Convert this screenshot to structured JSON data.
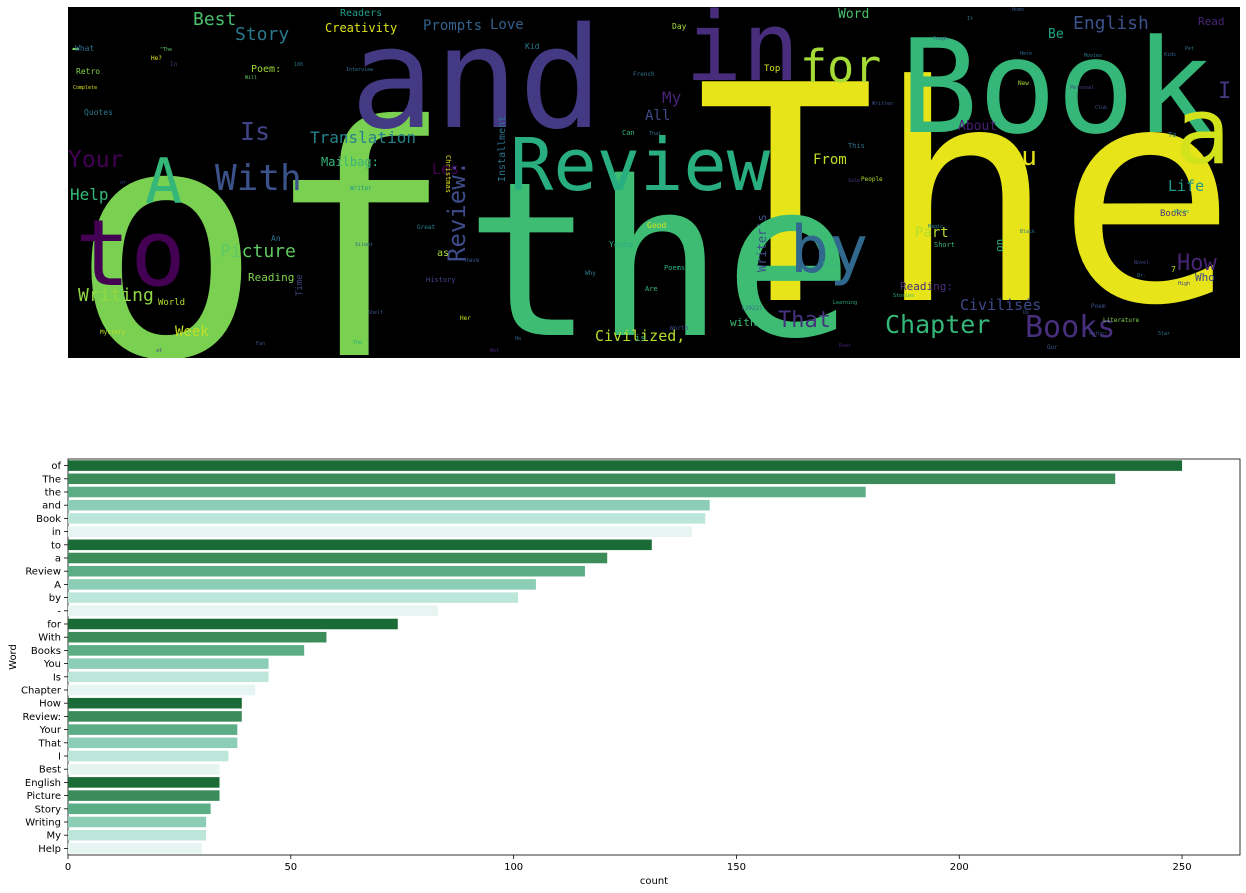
{
  "chart_data": [
    {
      "type": "wordcloud",
      "background": "#000000",
      "palette": "viridis",
      "words": [
        {
          "text": "of",
          "size": 250,
          "color": "#7ad151"
        },
        {
          "text": "The",
          "size": 235,
          "color": "#e7e419"
        },
        {
          "text": "the",
          "size": 179,
          "color": "#3fbc73"
        },
        {
          "text": "and",
          "size": 144,
          "color": "#443983"
        },
        {
          "text": "Book",
          "size": 143,
          "color": "#35b779"
        },
        {
          "text": "in",
          "size": 140,
          "color": "#472d7b"
        },
        {
          "text": "-",
          "size": 83,
          "color": "#7ad151"
        },
        {
          "text": "a",
          "size": 121,
          "color": "#d2e21b"
        },
        {
          "text": "Review",
          "size": 116,
          "color": "#29af7f"
        },
        {
          "text": "A",
          "size": 105,
          "color": "#35b779"
        },
        {
          "text": "to",
          "size": 131,
          "color": "#440154"
        },
        {
          "text": "by",
          "size": 101,
          "color": "#31688e"
        },
        {
          "text": "for",
          "size": 74,
          "color": "#a5db36"
        },
        {
          "text": "With",
          "size": 58,
          "color": "#3b528b"
        },
        {
          "text": "You",
          "size": 45,
          "color": "#e5e419"
        },
        {
          "text": "Books",
          "size": 53,
          "color": "#472f7d"
        },
        {
          "text": "Chapter",
          "size": 42,
          "color": "#35b779"
        },
        {
          "text": "Is",
          "size": 45,
          "color": "#414487"
        },
        {
          "text": "How",
          "size": 39,
          "color": "#482475"
        },
        {
          "text": "Review:",
          "size": 39,
          "color": "#3e4c8a"
        },
        {
          "text": "Your",
          "size": 38,
          "color": "#440154"
        },
        {
          "text": "That",
          "size": 38,
          "color": "#46327e"
        },
        {
          "text": "I",
          "size": 36,
          "color": "#453781"
        },
        {
          "text": "Best",
          "size": 34,
          "color": "#4ac16d"
        },
        {
          "text": "English",
          "size": 34,
          "color": "#3b528b"
        },
        {
          "text": "Picture",
          "size": 34,
          "color": "#5ec962"
        },
        {
          "text": "Story",
          "size": 32,
          "color": "#2a788e"
        },
        {
          "text": "Writing",
          "size": 31,
          "color": "#90d743"
        },
        {
          "text": "My",
          "size": 31,
          "color": "#482475"
        },
        {
          "text": "Help",
          "size": 30,
          "color": "#35b779"
        },
        {
          "text": "Translation",
          "size": 24,
          "color": "#26828e"
        },
        {
          "text": "Life",
          "size": 24,
          "color": "#1f988b"
        },
        {
          "text": "Civilized,",
          "size": 22,
          "color": "#b5de2b"
        },
        {
          "text": "Civilisés",
          "size": 22,
          "color": "#3e4989"
        },
        {
          "text": "Part",
          "size": 20,
          "color": "#b5de2b"
        },
        {
          "text": "From",
          "size": 20,
          "color": "#bddf26"
        },
        {
          "text": "Week",
          "size": 20,
          "color": "#c2df23"
        },
        {
          "text": "Les",
          "size": 20,
          "color": "#440154"
        },
        {
          "text": "All",
          "size": 20,
          "color": "#3e4a89"
        },
        {
          "text": "Love",
          "size": 20,
          "color": "#355f8d"
        },
        {
          "text": "Prompts",
          "size": 20,
          "color": "#33638d"
        },
        {
          "text": "Creativity",
          "size": 19,
          "color": "#dde318"
        },
        {
          "text": "Word",
          "size": 18,
          "color": "#4ac16d"
        },
        {
          "text": "About",
          "size": 18,
          "color": "#482173"
        },
        {
          "text": "Be",
          "size": 18,
          "color": "#21a685"
        },
        {
          "text": "Read",
          "size": 17,
          "color": "#482677"
        },
        {
          "text": "Mailbag:",
          "size": 17,
          "color": "#34b679"
        },
        {
          "text": "Reading:",
          "size": 16,
          "color": "#472c7a"
        },
        {
          "text": "with",
          "size": 14,
          "color": "#3dbc74"
        },
        {
          "text": "Writer's",
          "size": 15,
          "color": "#3b528b"
        },
        {
          "text": "Installment",
          "size": 15,
          "color": "#2c728e"
        },
        {
          "text": "Reading",
          "size": 14,
          "color": "#7fd34e"
        },
        {
          "text": "Readers",
          "size": 14,
          "color": "#1f9e89"
        },
        {
          "text": "Poem:",
          "size": 14,
          "color": "#a0da39"
        },
        {
          "text": "on",
          "size": 14,
          "color": "#27ad81"
        },
        {
          "text": "Who",
          "size": 14,
          "color": "#3f4889"
        },
        {
          "text": "Top",
          "size": 12,
          "color": "#d2e21b"
        },
        {
          "text": "Day",
          "size": 12,
          "color": "#a5db36"
        },
        {
          "text": "Kid",
          "size": 12,
          "color": "#297b8e"
        },
        {
          "text": "Quotes",
          "size": 12,
          "color": "#29798e"
        },
        {
          "text": "Retro",
          "size": 12,
          "color": "#85d54a"
        },
        {
          "text": "What",
          "size": 12,
          "color": "#2e6f8e"
        },
        {
          "text": "as",
          "size": 12,
          "color": "#a8db34"
        },
        {
          "text": "Young",
          "size": 12,
          "color": "#26ad81"
        },
        {
          "text": "Good",
          "size": 12,
          "color": "#d8e219"
        },
        {
          "text": "Are",
          "size": 11,
          "color": "#3aba76"
        },
        {
          "text": "Poems",
          "size": 11,
          "color": "#28ae80"
        },
        {
          "text": "Short",
          "size": 11,
          "color": "#35b779"
        },
        {
          "text": "Tale",
          "size": 11,
          "color": "#2fb47c"
        },
        {
          "text": "Time",
          "size": 11,
          "color": "#414487"
        },
        {
          "text": "An",
          "size": 11,
          "color": "#2b748e"
        },
        {
          "text": "World",
          "size": 11,
          "color": "#b8de29"
        },
        {
          "text": "History",
          "size": 10,
          "color": "#404688"
        },
        {
          "text": "Writer",
          "size": 10,
          "color": "#1f958b"
        },
        {
          "text": "Christmas",
          "size": 10,
          "color": "#e5e419"
        },
        {
          "text": "(2022)",
          "size": 9,
          "color": "#2c738e"
        },
        {
          "text": "This",
          "size": 9,
          "color": "#2d708e"
        },
        {
          "text": "Why",
          "size": 9,
          "color": "#27808e"
        },
        {
          "text": "Great",
          "size": 9,
          "color": "#25848e"
        },
        {
          "text": "Have",
          "size": 9,
          "color": "#38588c"
        },
        {
          "text": "Her",
          "size": 9,
          "color": "#c8e020"
        },
        {
          "text": "Worth",
          "size": 9,
          "color": "#3e4c8a"
        },
        {
          "text": "Poem",
          "size": 9,
          "color": "#3b528b"
        },
        {
          "text": "Literature",
          "size": 8,
          "color": "#84d44b"
        },
        {
          "text": "French",
          "size": 8,
          "color": "#2c728e"
        },
        {
          "text": "New",
          "size": 8,
          "color": "#a8db34"
        },
        {
          "text": "To",
          "size": 9,
          "color": "#2a788e"
        },
        {
          "text": "Mystery",
          "size": 8,
          "color": "#c0df25"
        },
        {
          "text": "People",
          "size": 8,
          "color": "#b2dd2d"
        },
        {
          "text": "Learning",
          "size": 8,
          "color": "#27ad81"
        },
        {
          "text": "He?",
          "size": 8,
          "color": "#e5e419"
        },
        {
          "text": "Complete",
          "size": 7,
          "color": "#d8e219"
        },
        {
          "text": "Interview",
          "size": 7,
          "color": "#2c728e"
        },
        {
          "text": "Will",
          "size": 7,
          "color": "#5cc863"
        },
        {
          "text": "Personal",
          "size": 7,
          "color": "#414487"
        },
        {
          "text": "Tough",
          "size": 7,
          "color": "#35608d"
        },
        {
          "text": "100",
          "size": 7,
          "color": "#2c728e"
        },
        {
          "text": "Kids",
          "size": 7,
          "color": "#32648e"
        },
        {
          "text": "Us",
          "size": 7,
          "color": "#39568c"
        },
        {
          "text": "Our",
          "size": 7,
          "color": "#3b528b"
        },
        {
          "text": "Not",
          "size": 7,
          "color": "#482475"
        },
        {
          "text": "Author",
          "size": 7,
          "color": "#3e4989"
        },
        {
          "text": "Novel",
          "size": 7,
          "color": "#414487"
        },
        {
          "text": "Black",
          "size": 7,
          "color": "#2a788e"
        },
        {
          "text": "Stories",
          "size": 7,
          "color": "#35b779"
        },
        {
          "text": "Sale",
          "size": 7,
          "color": "#46327e"
        },
        {
          "text": "That",
          "size": 7,
          "color": "#2e6e8e"
        },
        {
          "text": "Magic",
          "size": 7,
          "color": "#26828e"
        },
        {
          "text": "Written",
          "size": 7,
          "color": "#39558c"
        },
        {
          "text": "Books",
          "size": 7,
          "color": "#46317e"
        },
        {
          "text": "is",
          "size": 12,
          "color": "#32b67a"
        },
        {
          "text": "7",
          "size": 10,
          "color": "#c2df23"
        },
        {
          "text": "In",
          "size": 10,
          "color": "#46337f"
        },
        {
          "text": "\"The",
          "size": 8,
          "color": "#5ac864"
        },
        {
          "text": "Write",
          "size": 7,
          "color": "#27ad81"
        },
        {
          "text": "at",
          "size": 7,
          "color": "#3f4889"
        },
        {
          "text": "Can",
          "size": 7,
          "color": "#2fb47c"
        },
        {
          "text": "It",
          "size": 9,
          "color": "#2c738e"
        },
        {
          "text": "Here",
          "size": 7,
          "color": "#31678e"
        },
        {
          "text": "High",
          "size": 7,
          "color": "#404588"
        },
        {
          "text": "The",
          "size": 7,
          "color": "#29af7f"
        },
        {
          "text": "Movies",
          "size": 7,
          "color": "#2a788e"
        },
        {
          "text": "Ha",
          "size": 7,
          "color": "#32658e"
        },
        {
          "text": "or",
          "size": 7,
          "color": "#3e4989"
        },
        {
          "text": "Fan",
          "size": 7,
          "color": "#3a548c"
        },
        {
          "text": "Pet",
          "size": 7,
          "color": "#2d718e"
        },
        {
          "text": "Dr.",
          "size": 7,
          "color": "#2e6f8e"
        },
        {
          "text": "Shelf",
          "size": 7,
          "color": "#3b528b"
        },
        {
          "text": "Silent",
          "size": 7,
          "color": "#2f6b8e"
        },
        {
          "text": "Roar",
          "size": 7,
          "color": "#481f70"
        },
        {
          "text": "Star",
          "size": 7,
          "color": "#2b758e"
        },
        {
          "text": "Club",
          "size": 7,
          "color": "#3d4e8a"
        },
        {
          "text": "Home",
          "size": 7,
          "color": "#39568c"
        }
      ]
    },
    {
      "type": "bar",
      "orientation": "horizontal",
      "categories": [
        "of",
        "The",
        "the",
        "and",
        "Book",
        "in",
        "to",
        "a",
        "Review",
        "A",
        "by",
        "-",
        "for",
        "With",
        "Books",
        "You",
        "Is",
        "Chapter",
        "How",
        "Review:",
        "Your",
        "That",
        "I",
        "Best",
        "English",
        "Picture",
        "Story",
        "Writing",
        "My",
        "Help"
      ],
      "values": [
        250,
        235,
        179,
        144,
        143,
        140,
        131,
        121,
        116,
        105,
        101,
        83,
        74,
        58,
        53,
        45,
        45,
        42,
        39,
        39,
        38,
        38,
        36,
        34,
        34,
        34,
        32,
        31,
        31,
        30
      ],
      "colors": [
        "#1a6b35",
        "#3c8c5a",
        "#5aad84",
        "#8ccdb5",
        "#bde6db",
        "#e6f4f2"
      ],
      "xlabel": "count",
      "ylabel": "Word",
      "xlim": [
        0,
        263
      ],
      "xticks": [
        0,
        50,
        100,
        150,
        200,
        250
      ]
    }
  ]
}
